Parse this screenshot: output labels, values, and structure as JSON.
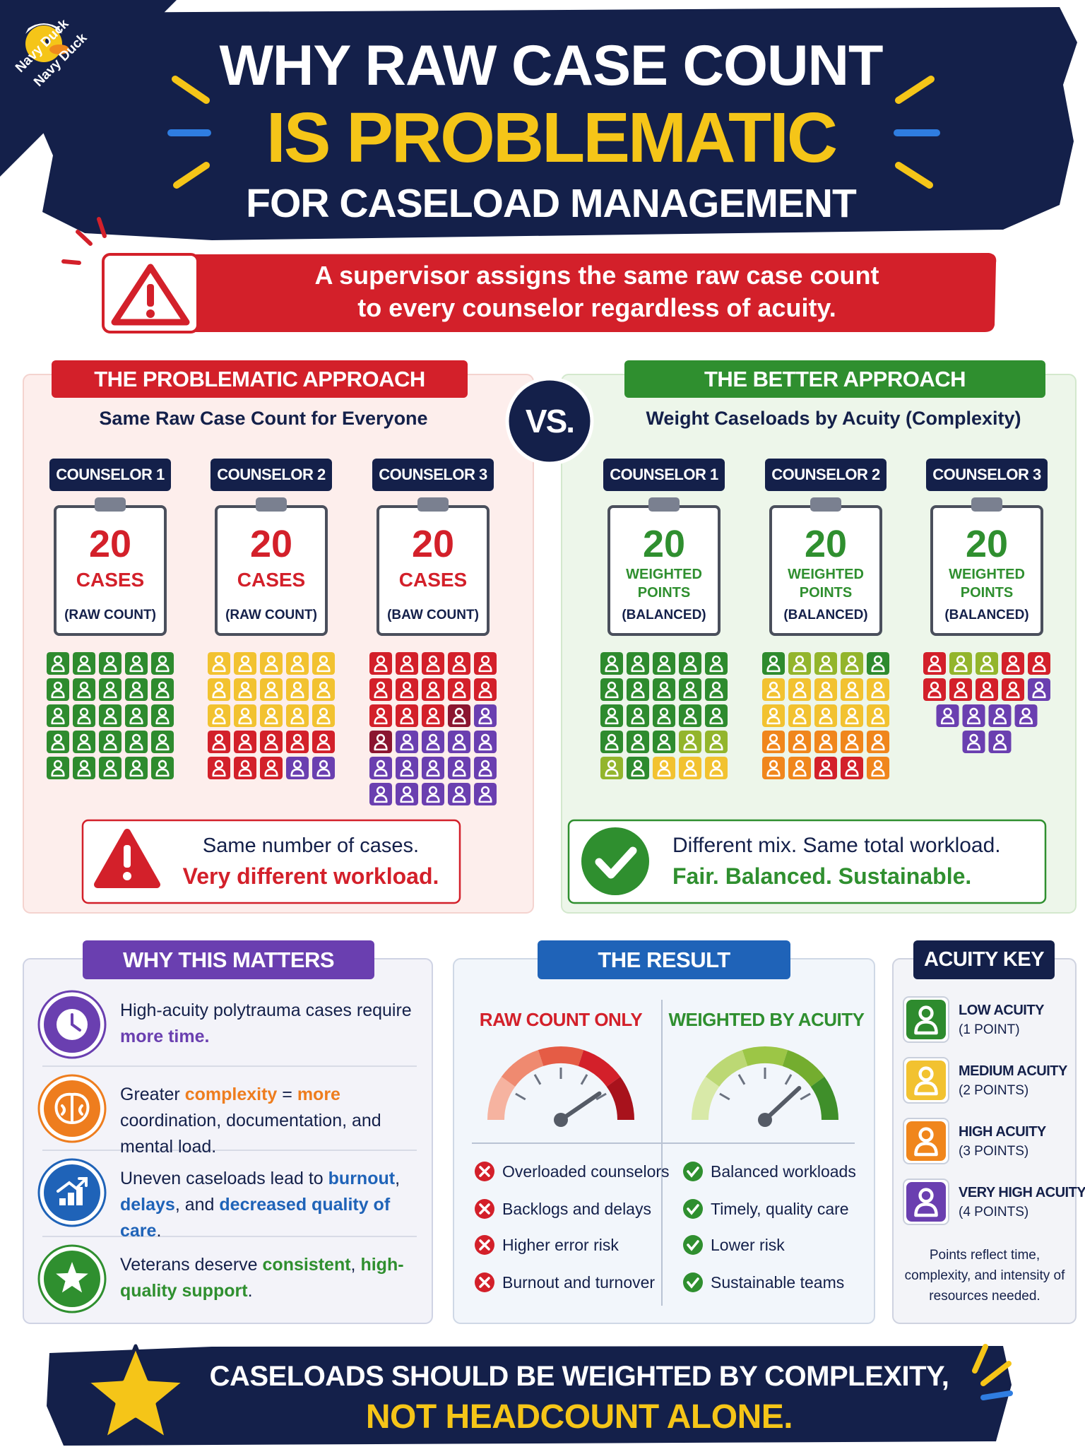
{
  "brand": "Navy Duck",
  "header": {
    "lines": [
      "WHY RAW CASE COUNT",
      "IS PROBLEMATIC",
      "FOR CASELOAD MANAGEMENT"
    ]
  },
  "alert": {
    "lines": [
      "A supervisor assigns the same raw case count",
      "to every counselor regardless of acuity."
    ]
  },
  "vs": "VS.",
  "problematic": {
    "title": "THE PROBLEMATIC APPROACH",
    "subtitle": "Same Raw Case Count for Everyone",
    "counselors": [
      {
        "name": "COUNSELOR 1",
        "number": 20,
        "unit": "CASES",
        "note": "(RAW COUNT)"
      },
      {
        "name": "COUNSELOR 2",
        "number": 20,
        "unit": "CASES",
        "note": "(RAW COUNT)"
      },
      {
        "name": "COUNSELOR 3",
        "number": 20,
        "unit": "CASES",
        "note": "(BAW COUNT)"
      }
    ],
    "summary": [
      "Same number of cases.",
      "Very different workload."
    ]
  },
  "better": {
    "title": "THE BETTER APPROACH",
    "subtitle": "Weight Caseloads by Acuity (Complexity)",
    "counselors": [
      {
        "name": "COUNSELOR 1",
        "number": 20,
        "unit": "WEIGHTED POINTS",
        "note": "(BALANCED)"
      },
      {
        "name": "COUNSELOR 2",
        "number": 20,
        "unit": "WEIGHTED POINTS",
        "note": "(BALANCED)"
      },
      {
        "name": "COUNSELOR 3",
        "number": 20,
        "unit": "WEIGHTED POINTS",
        "note": "(BALANCED)"
      }
    ],
    "summary": [
      "Different mix. Same total workload.",
      "Fair. Balanced. Sustainable."
    ]
  },
  "why": {
    "title": "WHY THIS MATTERS",
    "items": [
      {
        "color": "#6a3fb0",
        "segments": [
          {
            "text": "High-acuity polytrauma cases require "
          },
          {
            "text": "more time.",
            "color": "#6a3fb0"
          }
        ]
      },
      {
        "color": "#ee7d1e",
        "segments": [
          {
            "text": "Greater "
          },
          {
            "text": "complexity",
            "color": "#ee7d1e"
          },
          {
            "text": " = "
          },
          {
            "text": "more",
            "color": "#ee7d1e"
          },
          {
            "text": " coordination, documentation, and mental load."
          }
        ]
      },
      {
        "color": "#1f63b8",
        "segments": [
          {
            "text": "Uneven caseloads lead to "
          },
          {
            "text": "burnout",
            "color": "#1f63b8"
          },
          {
            "text": ", "
          },
          {
            "text": "delays",
            "color": "#1f63b8"
          },
          {
            "text": ", and "
          },
          {
            "text": "decreased quality of care",
            "color": "#1f63b8"
          },
          {
            "text": "."
          }
        ]
      },
      {
        "color": "#2f8f2f",
        "segments": [
          {
            "text": "Veterans deserve "
          },
          {
            "text": "consistent",
            "color": "#2f8f2f"
          },
          {
            "text": ", "
          },
          {
            "text": "high-quality support",
            "color": "#2f8f2f"
          },
          {
            "text": "."
          }
        ]
      }
    ]
  },
  "result": {
    "title": "THE RESULT",
    "columns": [
      {
        "heading": "RAW COUNT ONLY",
        "items": [
          "Overloaded counselors",
          "Backlogs and delays",
          "Higher error risk",
          "Burnout and turnover"
        ]
      },
      {
        "heading": "WEIGHTED BY ACUITY",
        "items": [
          "Balanced workloads",
          "Timely, quality care",
          "Lower risk",
          "Sustainable teams"
        ]
      }
    ]
  },
  "key": {
    "title": "ACUITY KEY",
    "levels": [
      {
        "name": "LOW ACUITY",
        "points": "(1 POINT)",
        "color": "#2e8b2e"
      },
      {
        "name": "MEDIUM ACUITY",
        "points": "(2 POINTS)",
        "color": "#f2c230"
      },
      {
        "name": "HIGH ACUITY",
        "points": "(3 POINTS)",
        "color": "#f0861c"
      },
      {
        "name": "VERY HIGH ACUITY",
        "points": "(4 POINTS)",
        "color": "#6a3fb0"
      }
    ],
    "note": "Points reflect time, complexity, and intensity of resources needed."
  },
  "footer": {
    "lines": [
      "CASELOADS SHOULD BE WEIGHTED BY COMPLEXITY,",
      "NOT HEADCOUNT ALONE."
    ]
  }
}
